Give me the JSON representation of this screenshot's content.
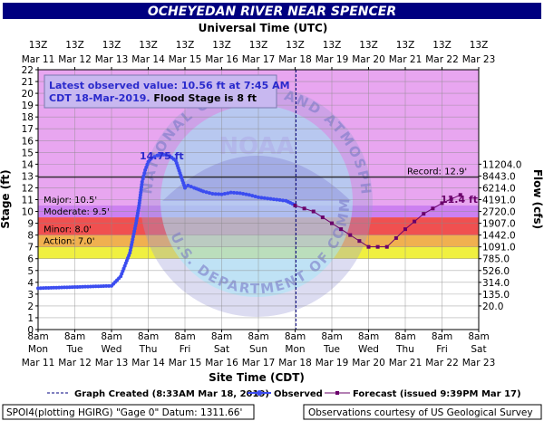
{
  "title": "OCHEYEDAN RIVER NEAR SPENCER",
  "top_axis_title": "Universal Time (UTC)",
  "bottom_axis_title": "Site Time (CDT)",
  "left_axis_title": "Stage (ft)",
  "right_axis_title": "Flow (cfs)",
  "top_ticks": [
    {
      "hour": "13Z",
      "date": "Mar 11"
    },
    {
      "hour": "13Z",
      "date": "Mar 12"
    },
    {
      "hour": "13Z",
      "date": "Mar 13"
    },
    {
      "hour": "13Z",
      "date": "Mar 14"
    },
    {
      "hour": "13Z",
      "date": "Mar 15"
    },
    {
      "hour": "13Z",
      "date": "Mar 16"
    },
    {
      "hour": "13Z",
      "date": "Mar 17"
    },
    {
      "hour": "13Z",
      "date": "Mar 18"
    },
    {
      "hour": "13Z",
      "date": "Mar 19"
    },
    {
      "hour": "13Z",
      "date": "Mar 20"
    },
    {
      "hour": "13Z",
      "date": "Mar 21"
    },
    {
      "hour": "13Z",
      "date": "Mar 22"
    },
    {
      "hour": "13Z",
      "date": "Mar 23"
    }
  ],
  "bottom_ticks": [
    {
      "time": "8am",
      "day": "Mon",
      "date": "Mar 11"
    },
    {
      "time": "8am",
      "day": "Tue",
      "date": "Mar 12"
    },
    {
      "time": "8am",
      "day": "Wed",
      "date": "Mar 13"
    },
    {
      "time": "8am",
      "day": "Thu",
      "date": "Mar 14"
    },
    {
      "time": "8am",
      "day": "Fri",
      "date": "Mar 15"
    },
    {
      "time": "8am",
      "day": "Sat",
      "date": "Mar 16"
    },
    {
      "time": "8am",
      "day": "Sun",
      "date": "Mar 17"
    },
    {
      "time": "8am",
      "day": "Mon",
      "date": "Mar 18"
    },
    {
      "time": "8am",
      "day": "Tue",
      "date": "Mar 19"
    },
    {
      "time": "8am",
      "day": "Wed",
      "date": "Mar 20"
    },
    {
      "time": "8am",
      "day": "Thu",
      "date": "Mar 21"
    },
    {
      "time": "8am",
      "day": "Fri",
      "date": "Mar 22"
    },
    {
      "time": "8am",
      "day": "Sat",
      "date": "Mar 23"
    }
  ],
  "info_box": {
    "line1": "Latest observed value: 10.56 ft at 7:45 AM",
    "line2a": "CDT 18-Mar-2019.",
    "line2b": " Flood Stage is 8 ft"
  },
  "peak_label": "14.75 ft",
  "forecast_label": "11.4 ft",
  "legend": {
    "created": "Graph Created (8:33AM Mar 18, 2019)",
    "observed": "Observed",
    "forecast": "Forecast (issued 9:39PM Mar 17)"
  },
  "footer": {
    "left": "SPOI4(plotting HGIRG) \"Gage 0\" Datum: 1311.66'",
    "right": "Observations courtesy of US Geological Survey"
  },
  "watermark": {
    "seal_ring_text": "NATIONAL OCEANIC AND ATMOSPHERIC ADMINISTRATION",
    "seal_center_text": "NOAA",
    "seal_bottom_text": "U.S. DEPARTMENT OF COMMERCE"
  },
  "colors": {
    "title_bar": "#000080",
    "record": "#e8a6f0",
    "major": "#cc80f0",
    "moderate": "#f05050",
    "minor": "#f0b050",
    "action": "#f0f040",
    "below": "#ffffff",
    "observed": "#3b4cf0",
    "forecast": "#6a006a"
  },
  "chart_data": {
    "type": "line",
    "title": "OCHEYEDAN RIVER NEAR SPENCER",
    "xlabel": "Site Time (CDT)",
    "ylabel": "Stage (ft)",
    "y2label": "Flow (cfs)",
    "xlim": [
      "2019-03-11 08:00",
      "2019-03-23 08:00"
    ],
    "ylim": [
      0,
      22
    ],
    "grid": true,
    "graph_created": "2019-03-18 08:33",
    "flood_categories": [
      {
        "name": "Record",
        "stage": 12.9,
        "label": "Record: 12.9'"
      },
      {
        "name": "Major",
        "stage": 10.5,
        "label": "Major: 10.5'"
      },
      {
        "name": "Moderate",
        "stage": 9.5,
        "label": "Moderate: 9.5'"
      },
      {
        "name": "Minor",
        "stage": 8.0,
        "label": "Minor: 8.0'"
      },
      {
        "name": "Action",
        "stage": 7.0,
        "label": "Action: 7.0'"
      }
    ],
    "flow_ticks": [
      {
        "stage": 3,
        "flow": "135.0"
      },
      {
        "stage": 4,
        "flow": "314.0"
      },
      {
        "stage": 5,
        "flow": "526.0"
      },
      {
        "stage": 6,
        "flow": "785.0"
      },
      {
        "stage": 7,
        "flow": "1091.0"
      },
      {
        "stage": 8,
        "flow": "1442.0"
      },
      {
        "stage": 9,
        "flow": "1907.0"
      },
      {
        "stage": 10,
        "flow": "2720.0"
      },
      {
        "stage": 11,
        "flow": "4191.0"
      },
      {
        "stage": 12,
        "flow": "6214.0"
      },
      {
        "stage": 13,
        "flow": "8443.0"
      },
      {
        "stage": 14,
        "flow": "11204.0"
      },
      {
        "stage": 2,
        "flow": "20.0"
      }
    ],
    "series": [
      {
        "name": "Observed",
        "x": [
          "2019-03-11 08:00",
          "2019-03-11 20:00",
          "2019-03-12 08:00",
          "2019-03-12 20:00",
          "2019-03-13 08:00",
          "2019-03-13 14:00",
          "2019-03-13 20:00",
          "2019-03-14 00:00",
          "2019-03-14 02:00",
          "2019-03-14 04:00",
          "2019-03-14 06:00",
          "2019-03-14 08:00",
          "2019-03-14 10:00",
          "2019-03-14 14:00",
          "2019-03-14 18:00",
          "2019-03-14 22:00",
          "2019-03-15 02:00",
          "2019-03-15 08:00",
          "2019-03-15 10:00",
          "2019-03-15 14:00",
          "2019-03-15 20:00",
          "2019-03-16 02:00",
          "2019-03-16 08:00",
          "2019-03-16 14:00",
          "2019-03-16 20:00",
          "2019-03-17 02:00",
          "2019-03-17 08:00",
          "2019-03-17 14:00",
          "2019-03-17 20:00",
          "2019-03-18 02:00",
          "2019-03-18 07:45"
        ],
        "y": [
          3.5,
          3.55,
          3.6,
          3.65,
          3.7,
          4.5,
          6.5,
          9.0,
          10.5,
          12.5,
          13.5,
          14.2,
          14.5,
          14.75,
          14.8,
          14.7,
          14.3,
          12.0,
          12.2,
          12.0,
          11.7,
          11.5,
          11.45,
          11.6,
          11.55,
          11.4,
          11.2,
          11.1,
          11.0,
          10.9,
          10.56
        ]
      },
      {
        "name": "Forecast",
        "x": [
          "2019-03-18 08:00",
          "2019-03-18 20:00",
          "2019-03-19 08:00",
          "2019-03-19 20:00",
          "2019-03-20 08:00",
          "2019-03-20 20:00",
          "2019-03-21 08:00",
          "2019-03-21 20:00",
          "2019-03-22 08:00",
          "2019-03-22 20:00"
        ],
        "y": [
          10.5,
          10.0,
          9.0,
          8.0,
          7.0,
          7.0,
          8.5,
          9.8,
          10.7,
          11.4
        ]
      }
    ]
  }
}
